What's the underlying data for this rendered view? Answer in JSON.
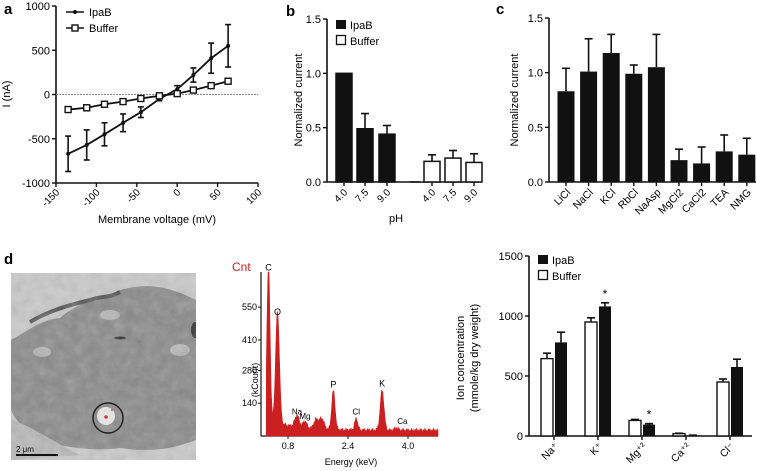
{
  "chart_data": [
    {
      "panel": "a",
      "type": "line",
      "xlabel": "Membrane voltage (mV)",
      "ylabel": "I (nA)",
      "xlim": [
        -150,
        100
      ],
      "ylim": [
        -1000,
        1000
      ],
      "xticks": [
        -150,
        -100,
        -50,
        0,
        50,
        100
      ],
      "yticks": [
        -1000,
        -500,
        0,
        500,
        1000
      ],
      "reference_line_y": 0,
      "legend": "top-left",
      "series": [
        {
          "name": "IpaB",
          "marker": "filled-dot",
          "x": [
            -135,
            -112,
            -90,
            -67,
            -45,
            -22,
            0,
            20,
            42,
            63
          ],
          "y": [
            -670,
            -570,
            -450,
            -320,
            -200,
            -50,
            60,
            220,
            410,
            550
          ],
          "err": [
            200,
            170,
            130,
            100,
            60,
            20,
            40,
            80,
            170,
            240
          ]
        },
        {
          "name": "Buffer",
          "marker": "open-square",
          "x": [
            -135,
            -112,
            -90,
            -67,
            -45,
            -22,
            0,
            20,
            42,
            63
          ],
          "y": [
            -170,
            -150,
            -110,
            -80,
            -45,
            -15,
            10,
            50,
            100,
            150
          ],
          "err": [
            30,
            30,
            15,
            10,
            10,
            10,
            10,
            10,
            10,
            20
          ]
        }
      ]
    },
    {
      "panel": "b",
      "type": "bar",
      "xlabel": "pH",
      "ylabel": "Normalized current",
      "ylim": [
        0,
        1.5
      ],
      "yticks": [
        "0.0",
        "0.5",
        "1.0",
        "1.5"
      ],
      "categories": [
        "4.0",
        "7.5",
        "9.0",
        "4.0",
        "7.5",
        "9.0"
      ],
      "legend": "top-left",
      "series": [
        {
          "name": "IpaB",
          "fill": "filled",
          "values": [
            1.0,
            0.49,
            0.44
          ],
          "err": [
            0,
            0.14,
            0.08
          ]
        },
        {
          "name": "Buffer",
          "fill": "open",
          "values": [
            0.19,
            0.22,
            0.18
          ],
          "err": [
            0.06,
            0.07,
            0.08
          ]
        }
      ]
    },
    {
      "panel": "c",
      "type": "bar",
      "xlabel": "",
      "ylabel": "Normalized current",
      "ylim": [
        0,
        1.5
      ],
      "yticks": [
        "0.0",
        "0.5",
        "1.0",
        "1.5"
      ],
      "categories": [
        "LiCl",
        "NaCl",
        "KCl",
        "RbCl",
        "NaAsp",
        "MgCl2",
        "CaCl2",
        "TEA",
        "NMG"
      ],
      "values": [
        0.83,
        1.01,
        1.18,
        0.99,
        1.05,
        0.2,
        0.17,
        0.28,
        0.25
      ],
      "err": [
        0.21,
        0.3,
        0.17,
        0.08,
        0.3,
        0.1,
        0.15,
        0.15,
        0.15
      ]
    },
    {
      "panel": "d-spectrum",
      "type": "area",
      "title": "Cnt",
      "xlabel": "Energy (keV)",
      "ylabel": "(kCount)",
      "xlim": [
        0,
        4.8
      ],
      "ylim": [
        0,
        700
      ],
      "xticks": [
        "0.8",
        "2.4",
        "4.0"
      ],
      "yticks": [
        "140",
        "280",
        "410",
        "550"
      ],
      "peaks": [
        {
          "label": "C",
          "energy": 0.28,
          "count": 690
        },
        {
          "label": "O",
          "energy": 0.52,
          "count": 500
        },
        {
          "label": "Na",
          "energy": 1.04,
          "count": 75
        },
        {
          "label": "Mg",
          "energy": 1.25,
          "count": 55
        },
        {
          "label": "P",
          "energy": 2.01,
          "count": 190
        },
        {
          "label": "Cl",
          "energy": 2.62,
          "count": 75
        },
        {
          "label": "K",
          "energy": 3.31,
          "count": 195
        },
        {
          "label": "Ca",
          "energy": 3.69,
          "count": 35
        }
      ]
    },
    {
      "panel": "d-ions",
      "type": "bar",
      "xlabel": "",
      "ylabel": "Ion concentration\n(mmole/kg dry weight)",
      "ylabel_lines": [
        "Ion concentration",
        "(mmole/kg dry weight)"
      ],
      "ylim": [
        0,
        1500
      ],
      "yticks": [
        "0",
        "500",
        "1000",
        "1500"
      ],
      "categories": [
        "Na⁺",
        "K⁺",
        "Mg⁺²",
        "Ca⁺²",
        "Cl⁻"
      ],
      "legend": "top-left",
      "series": [
        {
          "name": "IpaB",
          "fill": "filled",
          "values": [
            780,
            1080,
            95,
            5,
            575
          ],
          "err": [
            85,
            30,
            8,
            2,
            65
          ]
        },
        {
          "name": "Buffer",
          "fill": "open",
          "values": [
            645,
            950,
            130,
            20,
            450
          ],
          "err": [
            45,
            35,
            8,
            3,
            25
          ]
        }
      ],
      "significance_marks": [
        {
          "category": "K⁺",
          "series": "IpaB",
          "mark": "*"
        },
        {
          "category": "Mg⁺²",
          "series": "IpaB",
          "mark": "*"
        }
      ]
    }
  ],
  "panel_labels": [
    "a",
    "b",
    "c",
    "d"
  ],
  "micrograph": {
    "scale_bar_label": "2 μm"
  },
  "colors": {
    "ink": "#111111",
    "spectrum": "#cc1f1f",
    "zero_line": "#888888"
  }
}
